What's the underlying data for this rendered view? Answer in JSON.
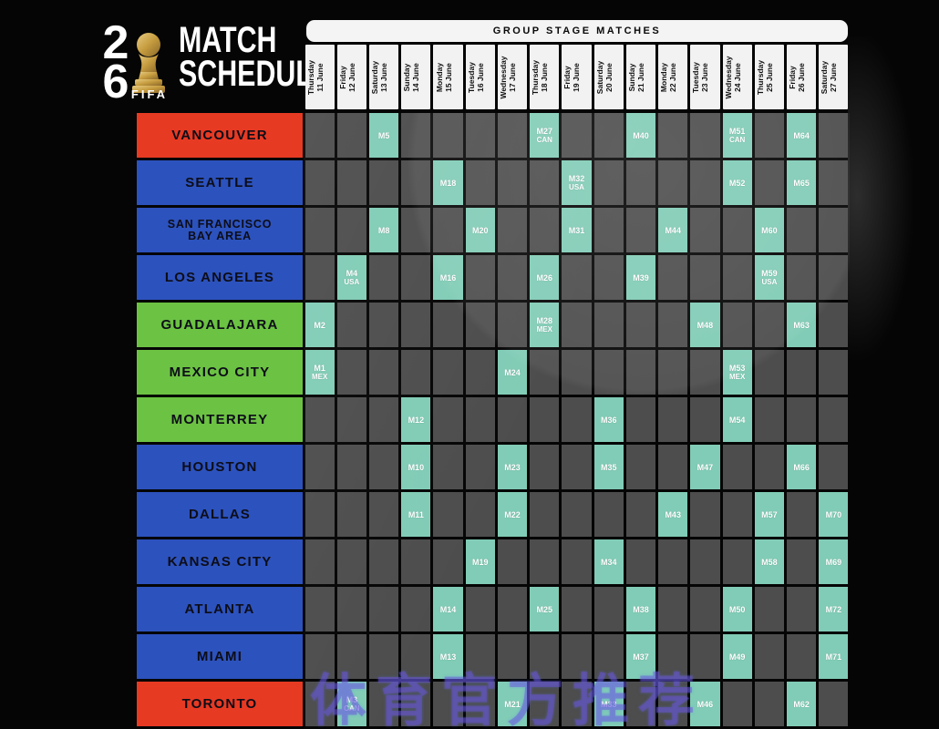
{
  "header": {
    "title_line1": "MATCH",
    "title_line2": "SCHEDULE",
    "group_bar_label": "GROUP STAGE MATCHES"
  },
  "logo": {
    "digit_top": "2",
    "digit_bottom": "6",
    "fifa_label": "FIFA"
  },
  "watermark_text": "体育官方推荐",
  "colors": {
    "canada_red": "#e73a23",
    "usa_blue": "#2c52bd",
    "mexico_green": "#6cc243",
    "match_teal": "#81ccb6",
    "empty_cell_gray": "#4d4d4d",
    "header_white": "#f2f2f2"
  },
  "chart_data": {
    "type": "table",
    "title": "MATCH SCHEDULE",
    "subtitle": "GROUP STAGE MATCHES",
    "columns": [
      {
        "day": "Thursday",
        "date": "11 June"
      },
      {
        "day": "Friday",
        "date": "12 June"
      },
      {
        "day": "Saturday",
        "date": "13 June"
      },
      {
        "day": "Sunday",
        "date": "14 June"
      },
      {
        "day": "Monday",
        "date": "15 June"
      },
      {
        "day": "Tuesday",
        "date": "16 June"
      },
      {
        "day": "Wednesday",
        "date": "17 June"
      },
      {
        "day": "Thursday",
        "date": "18 June"
      },
      {
        "day": "Friday",
        "date": "19 June"
      },
      {
        "day": "Saturday",
        "date": "20 June"
      },
      {
        "day": "Sunday",
        "date": "21 June"
      },
      {
        "day": "Monday",
        "date": "22 June"
      },
      {
        "day": "Tuesday",
        "date": "23 June"
      },
      {
        "day": "Wednesday",
        "date": "24 June"
      },
      {
        "day": "Thursday",
        "date": "25 June"
      },
      {
        "day": "Friday",
        "date": "26 June"
      },
      {
        "day": "Saturday",
        "date": "27 June"
      }
    ],
    "rows": [
      {
        "city_lines": [
          "VANCOUVER"
        ],
        "country": "canada",
        "matches": [
          {
            "col": 3,
            "m": "M5"
          },
          {
            "col": 8,
            "m": "M27",
            "sub": "CAN"
          },
          {
            "col": 11,
            "m": "M40"
          },
          {
            "col": 14,
            "m": "M51",
            "sub": "CAN"
          },
          {
            "col": 16,
            "m": "M64"
          }
        ]
      },
      {
        "city_lines": [
          "SEATTLE"
        ],
        "country": "usa",
        "matches": [
          {
            "col": 5,
            "m": "M18"
          },
          {
            "col": 9,
            "m": "M32",
            "sub": "USA"
          },
          {
            "col": 14,
            "m": "M52"
          },
          {
            "col": 16,
            "m": "M65"
          }
        ]
      },
      {
        "city_lines": [
          "SAN FRANCISCO",
          "BAY AREA"
        ],
        "country": "usa",
        "matches": [
          {
            "col": 3,
            "m": "M8"
          },
          {
            "col": 6,
            "m": "M20"
          },
          {
            "col": 9,
            "m": "M31"
          },
          {
            "col": 12,
            "m": "M44"
          },
          {
            "col": 15,
            "m": "M60"
          }
        ]
      },
      {
        "city_lines": [
          "LOS ANGELES"
        ],
        "country": "usa",
        "matches": [
          {
            "col": 2,
            "m": "M4",
            "sub": "USA"
          },
          {
            "col": 5,
            "m": "M16"
          },
          {
            "col": 8,
            "m": "M26"
          },
          {
            "col": 11,
            "m": "M39"
          },
          {
            "col": 15,
            "m": "M59",
            "sub": "USA"
          }
        ]
      },
      {
        "city_lines": [
          "GUADALAJARA"
        ],
        "country": "mexico",
        "matches": [
          {
            "col": 1,
            "m": "M2"
          },
          {
            "col": 8,
            "m": "M28",
            "sub": "MEX"
          },
          {
            "col": 13,
            "m": "M48"
          },
          {
            "col": 16,
            "m": "M63"
          }
        ]
      },
      {
        "city_lines": [
          "MEXICO CITY"
        ],
        "country": "mexico",
        "matches": [
          {
            "col": 1,
            "m": "M1",
            "sub": "MEX"
          },
          {
            "col": 7,
            "m": "M24"
          },
          {
            "col": 14,
            "m": "M53",
            "sub": "MEX"
          }
        ]
      },
      {
        "city_lines": [
          "MONTERREY"
        ],
        "country": "mexico",
        "matches": [
          {
            "col": 4,
            "m": "M12"
          },
          {
            "col": 10,
            "m": "M36"
          },
          {
            "col": 14,
            "m": "M54"
          }
        ]
      },
      {
        "city_lines": [
          "HOUSTON"
        ],
        "country": "usa",
        "matches": [
          {
            "col": 4,
            "m": "M10"
          },
          {
            "col": 7,
            "m": "M23"
          },
          {
            "col": 10,
            "m": "M35"
          },
          {
            "col": 13,
            "m": "M47"
          },
          {
            "col": 16,
            "m": "M66"
          }
        ]
      },
      {
        "city_lines": [
          "DALLAS"
        ],
        "country": "usa",
        "matches": [
          {
            "col": 4,
            "m": "M11"
          },
          {
            "col": 7,
            "m": "M22"
          },
          {
            "col": 12,
            "m": "M43"
          },
          {
            "col": 15,
            "m": "M57"
          },
          {
            "col": 17,
            "m": "M70"
          }
        ]
      },
      {
        "city_lines": [
          "KANSAS CITY"
        ],
        "country": "usa",
        "matches": [
          {
            "col": 6,
            "m": "M19"
          },
          {
            "col": 10,
            "m": "M34"
          },
          {
            "col": 15,
            "m": "M58"
          },
          {
            "col": 17,
            "m": "M69"
          }
        ]
      },
      {
        "city_lines": [
          "ATLANTA"
        ],
        "country": "usa",
        "matches": [
          {
            "col": 5,
            "m": "M14"
          },
          {
            "col": 8,
            "m": "M25"
          },
          {
            "col": 11,
            "m": "M38"
          },
          {
            "col": 14,
            "m": "M50"
          },
          {
            "col": 17,
            "m": "M72"
          }
        ]
      },
      {
        "city_lines": [
          "MIAMI"
        ],
        "country": "usa",
        "matches": [
          {
            "col": 5,
            "m": "M13"
          },
          {
            "col": 11,
            "m": "M37"
          },
          {
            "col": 14,
            "m": "M49"
          },
          {
            "col": 17,
            "m": "M71"
          }
        ]
      },
      {
        "city_lines": [
          "TORONTO"
        ],
        "country": "canada",
        "matches": [
          {
            "col": 2,
            "m": "M3",
            "sub": "CAN"
          },
          {
            "col": 7,
            "m": "M21"
          },
          {
            "col": 10,
            "m": "M33"
          },
          {
            "col": 13,
            "m": "M46"
          },
          {
            "col": 16,
            "m": "M62"
          }
        ]
      }
    ]
  }
}
